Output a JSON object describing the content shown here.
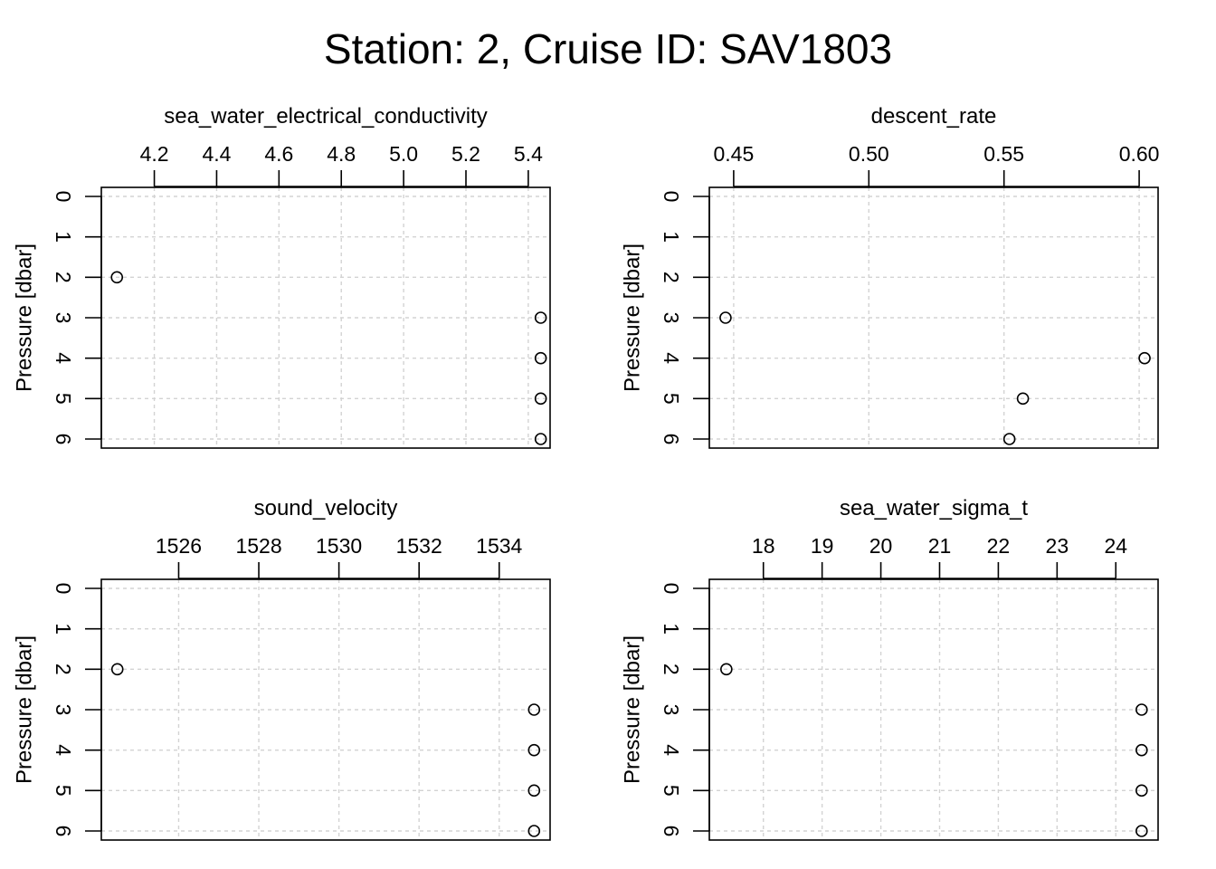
{
  "title": "Station: 2, Cruise ID: SAV1803",
  "chart_data": [
    {
      "type": "scatter",
      "title": "sea_water_electrical_conductivity",
      "xlabel": "",
      "ylabel": "Pressure [dbar]",
      "x_axis_position": "top",
      "y_inverted": true,
      "grid": true,
      "xlim": [
        4.03,
        5.47
      ],
      "ylim": [
        0,
        6
      ],
      "xticks": [
        4.2,
        4.4,
        4.6,
        4.8,
        5.0,
        5.2,
        5.4
      ],
      "xtick_labels": [
        "4.2",
        "4.4",
        "4.6",
        "4.8",
        "5.0",
        "5.2",
        "5.4"
      ],
      "yticks": [
        0,
        1,
        2,
        3,
        4,
        5,
        6
      ],
      "ytick_labels": [
        "0",
        "1",
        "2",
        "3",
        "4",
        "5",
        "6"
      ],
      "x": [
        4.08,
        5.44,
        5.44,
        5.44,
        5.44
      ],
      "y": [
        2,
        3,
        4,
        5,
        6
      ]
    },
    {
      "type": "scatter",
      "title": "descent_rate",
      "xlabel": "",
      "ylabel": "Pressure [dbar]",
      "x_axis_position": "top",
      "y_inverted": true,
      "grid": true,
      "xlim": [
        0.441,
        0.607
      ],
      "ylim": [
        0,
        6
      ],
      "xticks": [
        0.45,
        0.5,
        0.55,
        0.6
      ],
      "xtick_labels": [
        "0.45",
        "0.50",
        "0.55",
        "0.60"
      ],
      "yticks": [
        0,
        1,
        2,
        3,
        4,
        5,
        6
      ],
      "ytick_labels": [
        "0",
        "1",
        "2",
        "3",
        "4",
        "5",
        "6"
      ],
      "x": [
        0.447,
        0.602,
        0.557,
        0.552
      ],
      "y": [
        3,
        4,
        5,
        6
      ]
    },
    {
      "type": "scatter",
      "title": "sound_velocity",
      "xlabel": "",
      "ylabel": "Pressure [dbar]",
      "x_axis_position": "top",
      "y_inverted": true,
      "grid": true,
      "xlim": [
        1524.07,
        1535.27
      ],
      "ylim": [
        0,
        6
      ],
      "xticks": [
        1526,
        1528,
        1530,
        1532,
        1534
      ],
      "xtick_labels": [
        "1526",
        "1528",
        "1530",
        "1532",
        "1534"
      ],
      "yticks": [
        0,
        1,
        2,
        3,
        4,
        5,
        6
      ],
      "ytick_labels": [
        "0",
        "1",
        "2",
        "3",
        "4",
        "5",
        "6"
      ],
      "x": [
        1524.47,
        1534.87,
        1534.87,
        1534.87,
        1534.87
      ],
      "y": [
        2,
        3,
        4,
        5,
        6
      ]
    },
    {
      "type": "scatter",
      "title": "sea_water_sigma_t",
      "xlabel": "",
      "ylabel": "Pressure [dbar]",
      "x_axis_position": "top",
      "y_inverted": true,
      "grid": true,
      "xlim": [
        17.08,
        24.72
      ],
      "ylim": [
        0,
        6
      ],
      "xticks": [
        18,
        19,
        20,
        21,
        22,
        23,
        24
      ],
      "xtick_labels": [
        "18",
        "19",
        "20",
        "21",
        "22",
        "23",
        "24"
      ],
      "yticks": [
        0,
        1,
        2,
        3,
        4,
        5,
        6
      ],
      "ytick_labels": [
        "0",
        "1",
        "2",
        "3",
        "4",
        "5",
        "6"
      ],
      "x": [
        17.37,
        24.44,
        24.44,
        24.44,
        24.44
      ],
      "y": [
        2,
        3,
        4,
        5,
        6
      ]
    }
  ]
}
